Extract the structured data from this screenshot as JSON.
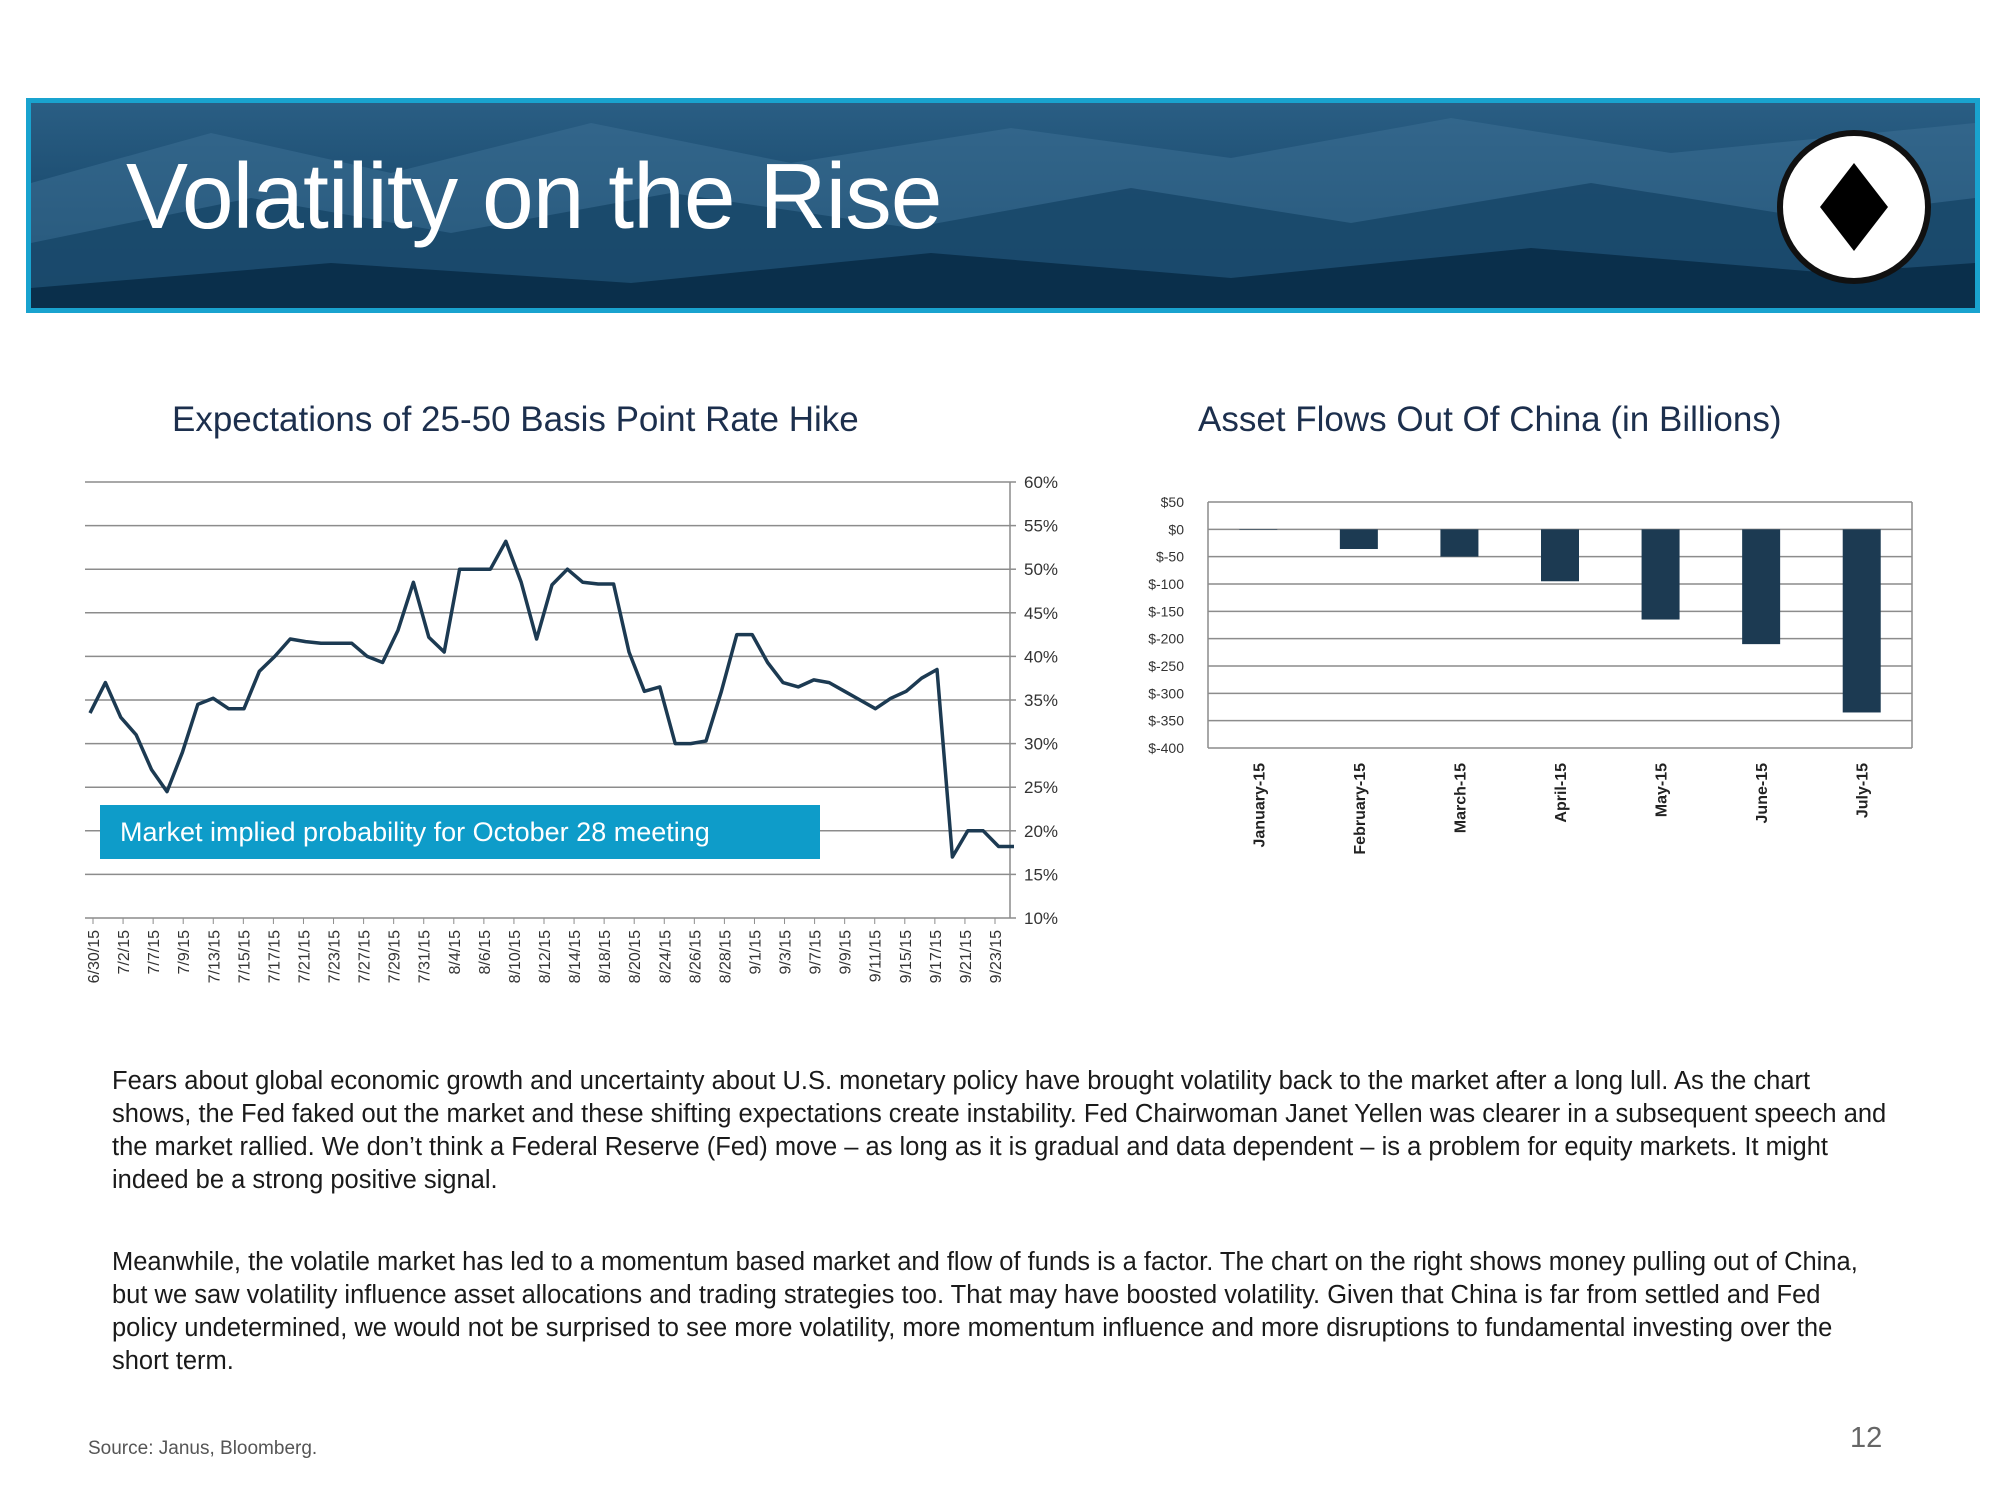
{
  "header": {
    "title": "Volatility on the Rise",
    "badge_icon": "diamond-icon"
  },
  "colors": {
    "banner_dark": "#0c3a5b",
    "banner_border": "#19a3cf",
    "line": "#1c3a52",
    "bar": "#1c3a52",
    "callout": "#0e9cc9"
  },
  "callout": {
    "text": "Market implied probability for October 28 meeting"
  },
  "body": {
    "p1": "Fears about global economic growth and uncertainty about U.S. monetary policy have brought volatility back to the market after a long lull. As the chart shows, the Fed faked out the market and these shifting expectations create instability. Fed Chairwoman Janet Yellen was clearer in a subsequent speech and the market rallied. We don’t think a Federal Reserve (Fed) move – as long as it is gradual and data dependent – is a problem for equity markets. It might indeed be a strong positive signal.",
    "p2": "Meanwhile, the volatile market has led to a momentum based market and flow of funds is a factor. The chart on the right shows money pulling out of China, but we saw volatility influence asset allocations and trading strategies too. That may have boosted volatility. Given that China is far from settled and Fed policy undetermined, we would not be surprised to see more volatility, more momentum influence and more disruptions to fundamental investing over the short term."
  },
  "footer": {
    "source": "Source: Janus, Bloomberg.",
    "page": "12"
  },
  "chart_data": [
    {
      "type": "line",
      "title": "Expectations of 25-50 Basis Point Rate Hike",
      "ylim": [
        10,
        60
      ],
      "y_ticks": [
        "10%",
        "15%",
        "20%",
        "25%",
        "30%",
        "35%",
        "40%",
        "45%",
        "50%",
        "55%",
        "60%"
      ],
      "y_axis_side": "right",
      "grid": true,
      "x_tick_labels": [
        "6/30/15",
        "7/2/15",
        "7/7/15",
        "7/9/15",
        "7/13/15",
        "7/15/15",
        "7/17/15",
        "7/21/15",
        "7/23/15",
        "7/27/15",
        "7/29/15",
        "7/31/15",
        "8/4/15",
        "8/6/15",
        "8/10/15",
        "8/12/15",
        "8/14/15",
        "8/18/15",
        "8/20/15",
        "8/24/15",
        "8/26/15",
        "8/28/15",
        "9/1/15",
        "9/3/15",
        "9/7/15",
        "9/9/15",
        "9/11/15",
        "9/15/15",
        "9/17/15",
        "9/21/15",
        "9/23/15"
      ],
      "values": [
        33.5,
        37,
        33,
        31,
        27,
        24.5,
        29,
        34.5,
        35.2,
        34,
        34,
        38.3,
        40,
        42,
        41.7,
        41.5,
        41.5,
        41.5,
        40,
        39.3,
        43,
        48.5,
        42.2,
        40.5,
        50,
        50,
        50,
        53.2,
        48.5,
        42,
        48.2,
        50,
        48.5,
        48.3,
        48.3,
        40.5,
        36,
        36.5,
        30,
        30,
        30.3,
        36,
        42.5,
        42.5,
        39.3,
        37,
        36.5,
        37.3,
        37,
        36,
        35,
        34,
        35.2,
        36,
        37.5,
        38.5,
        17,
        20,
        20,
        18.2,
        18.2
      ]
    },
    {
      "type": "bar",
      "title": "Asset Flows Out Of China (in Billions)",
      "categories": [
        "January-15",
        "February-15",
        "March-15",
        "April-15",
        "May-15",
        "June-15",
        "July-15"
      ],
      "values": [
        0,
        -36,
        -50,
        -95,
        -165,
        -210,
        -335
      ],
      "ylim": [
        -400,
        50
      ],
      "y_ticks": [
        "$50",
        "$0",
        "$-50",
        "$-100",
        "$-150",
        "$-200",
        "$-250",
        "$-300",
        "$-350",
        "$-400"
      ],
      "grid": true
    }
  ]
}
